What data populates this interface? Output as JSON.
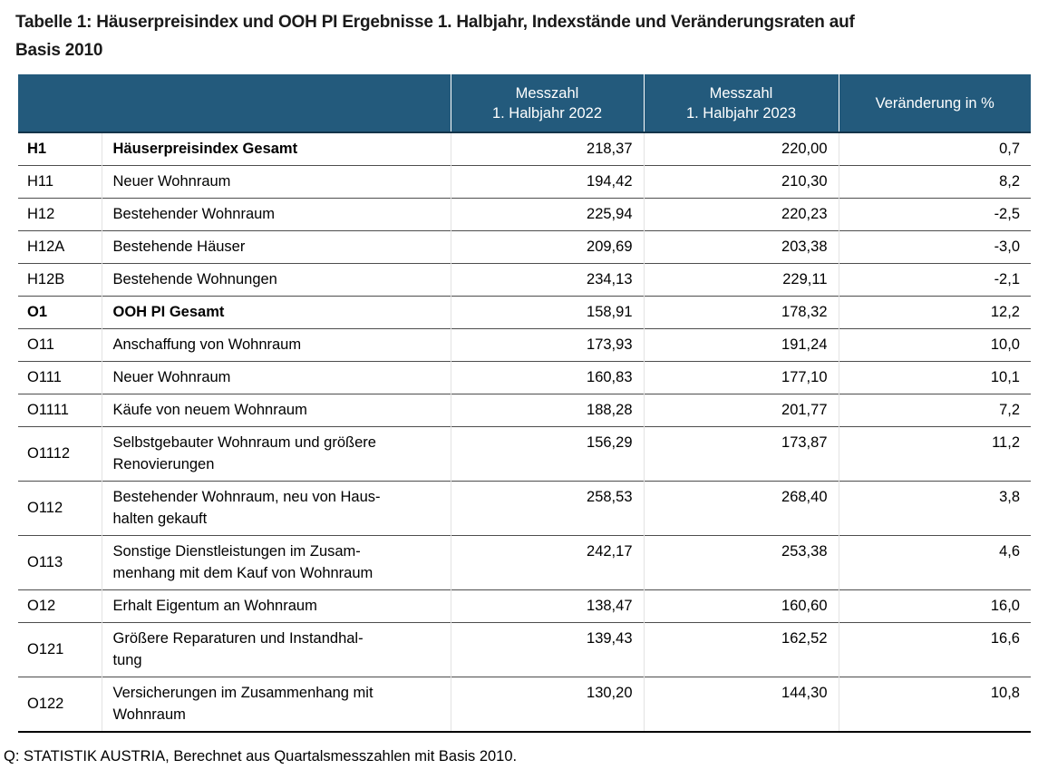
{
  "title": {
    "line1": "Tabelle 1: Häuserpreisindex und OOH PI Ergebnisse 1. Halbjahr, Indexstände und Veränderungsraten auf",
    "line2": "Basis 2010"
  },
  "colors": {
    "header_bg": "#235a7c",
    "header_text": "#ffffff",
    "row_border": "#4d4d4d",
    "table_bottom_border": "#000000"
  },
  "table": {
    "columns": {
      "code": "",
      "label": "",
      "measure_2022": "Messzahl\n1. Halbjahr 2022",
      "measure_2023": "Messzahl\n1. Halbjahr 2023",
      "change": "Veränderung in %"
    },
    "rows": [
      {
        "code": "H1",
        "label": "Häuserpreisindex Gesamt",
        "bold": true,
        "v2022": "218,37",
        "v2023": "220,00",
        "change": "0,7"
      },
      {
        "code": "H11",
        "label": "Neuer Wohnraum",
        "bold": false,
        "v2022": "194,42",
        "v2023": "210,30",
        "change": "8,2"
      },
      {
        "code": "H12",
        "label": "Bestehender Wohnraum",
        "bold": false,
        "v2022": "225,94",
        "v2023": "220,23",
        "change": "-2,5"
      },
      {
        "code": "H12A",
        "label": "Bestehende Häuser",
        "bold": false,
        "v2022": "209,69",
        "v2023": "203,38",
        "change": "-3,0"
      },
      {
        "code": "H12B",
        "label": "Bestehende Wohnungen",
        "bold": false,
        "v2022": "234,13",
        "v2023": "229,11",
        "change": "-2,1"
      },
      {
        "code": "O1",
        "label": "OOH PI Gesamt",
        "bold": true,
        "v2022": "158,91",
        "v2023": "178,32",
        "change": "12,2"
      },
      {
        "code": "O11",
        "label": "Anschaffung von Wohnraum",
        "bold": false,
        "v2022": "173,93",
        "v2023": "191,24",
        "change": "10,0"
      },
      {
        "code": "O111",
        "label": "Neuer Wohnraum",
        "bold": false,
        "v2022": "160,83",
        "v2023": "177,10",
        "change": "10,1"
      },
      {
        "code": "O1111",
        "label": "Käufe von neuem Wohnraum",
        "bold": false,
        "v2022": "188,28",
        "v2023": "201,77",
        "change": "7,2"
      },
      {
        "code": "O1112",
        "label": "Selbstgebauter Wohnraum und größere\nRenovierungen",
        "bold": false,
        "v2022": "156,29",
        "v2023": "173,87",
        "change": "11,2"
      },
      {
        "code": "O112",
        "label": "Bestehender Wohnraum, neu von Haus-\nhalten gekauft",
        "bold": false,
        "v2022": "258,53",
        "v2023": "268,40",
        "change": "3,8"
      },
      {
        "code": "O113",
        "label": "Sonstige Dienstleistungen im Zusam-\nmenhang mit dem Kauf von Wohnraum",
        "bold": false,
        "v2022": "242,17",
        "v2023": "253,38",
        "change": "4,6"
      },
      {
        "code": "O12",
        "label": "Erhalt Eigentum an Wohnraum",
        "bold": false,
        "v2022": "138,47",
        "v2023": "160,60",
        "change": "16,0"
      },
      {
        "code": "O121",
        "label": "Größere Reparaturen und Instandhal-\ntung",
        "bold": false,
        "v2022": "139,43",
        "v2023": "162,52",
        "change": "16,6"
      },
      {
        "code": "O122",
        "label": "Versicherungen im Zusammenhang mit\nWohnraum",
        "bold": false,
        "v2022": "130,20",
        "v2023": "144,30",
        "change": "10,8"
      }
    ]
  },
  "footer": {
    "source": "Q: STATISTIK AUSTRIA, Berechnet aus Quartalsmesszahlen mit Basis 2010."
  }
}
